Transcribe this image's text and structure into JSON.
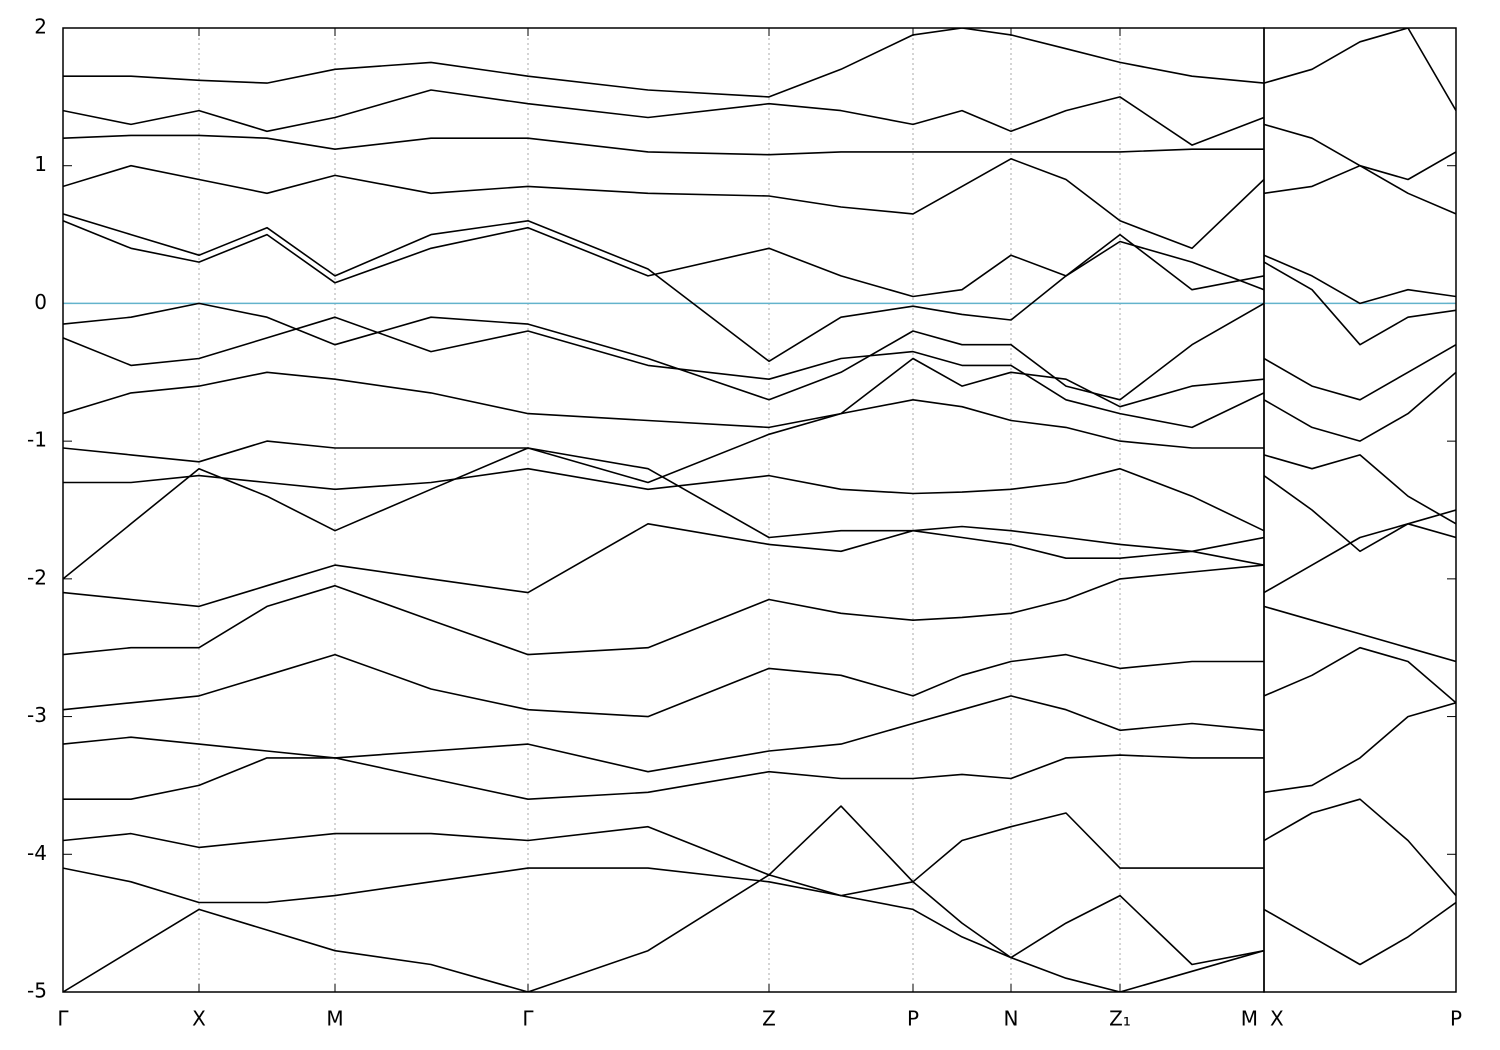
{
  "chart_data": [
    {
      "type": "line",
      "color": "#000000",
      "fermi_level": 0,
      "fermi_color": "#63b3cc",
      "xgrid": true,
      "xlim": [
        0,
        1201
      ],
      "ylim": [
        -5,
        2
      ],
      "yticks": [
        -5,
        -4,
        -3,
        -2,
        -1,
        0,
        1,
        2
      ],
      "xticks": [
        {
          "value": 0,
          "label": "Γ"
        },
        {
          "value": 136,
          "label": "X"
        },
        {
          "value": 272,
          "label": "M"
        },
        {
          "value": 465,
          "label": "Γ"
        },
        {
          "value": 706,
          "label": "Z"
        },
        {
          "value": 850,
          "label": "P"
        },
        {
          "value": 948,
          "label": "N"
        },
        {
          "value": 1057,
          "label": "Z₁"
        },
        {
          "value": 1201,
          "label": "M"
        }
      ],
      "x": [
        0,
        68,
        136,
        204,
        272,
        368,
        465,
        585,
        706,
        778,
        850,
        899,
        948,
        1003,
        1057,
        1129,
        1201
      ],
      "series": [
        {
          "values": [
            -0.15,
            -0.1,
            0.0,
            -0.1,
            -0.3,
            -0.1,
            -0.15,
            -0.4,
            -0.7,
            -0.5,
            -0.2,
            -0.3,
            -0.3,
            -0.6,
            -0.7,
            -0.3,
            0.0
          ]
        },
        {
          "values": [
            0.6,
            0.4,
            0.3,
            0.5,
            0.15,
            0.4,
            0.55,
            0.2,
            0.4,
            0.2,
            0.05,
            0.1,
            0.35,
            0.2,
            0.45,
            0.3,
            0.1
          ]
        },
        {
          "values": [
            0.65,
            0.5,
            0.35,
            0.55,
            0.2,
            0.5,
            0.6,
            0.25,
            -0.42,
            -0.1,
            -0.02,
            -0.08,
            -0.12,
            0.2,
            0.5,
            0.1,
            0.2
          ]
        },
        {
          "values": [
            0.85,
            1.0,
            0.9,
            0.8,
            0.93,
            0.8,
            0.85,
            0.8,
            0.78,
            0.7,
            0.65,
            0.85,
            1.05,
            0.9,
            0.6,
            0.4,
            0.9
          ]
        },
        {
          "values": [
            1.2,
            1.22,
            1.22,
            1.2,
            1.12,
            1.2,
            1.2,
            1.1,
            1.08,
            1.1,
            1.1,
            1.1,
            1.1,
            1.1,
            1.1,
            1.12,
            1.12
          ]
        },
        {
          "values": [
            1.4,
            1.3,
            1.4,
            1.25,
            1.35,
            1.55,
            1.45,
            1.35,
            1.45,
            1.4,
            1.3,
            1.4,
            1.25,
            1.4,
            1.5,
            1.15,
            1.35
          ]
        },
        {
          "values": [
            1.65,
            1.65,
            1.62,
            1.6,
            1.7,
            1.75,
            1.65,
            1.55,
            1.5,
            1.7,
            1.95,
            2.0,
            1.95,
            1.85,
            1.75,
            1.65,
            1.6
          ]
        },
        {
          "values": [
            -0.8,
            -0.65,
            -0.6,
            -0.5,
            -0.55,
            -0.65,
            -0.8,
            -0.85,
            -0.9,
            -0.8,
            -0.4,
            -0.6,
            -0.5,
            -0.55,
            -0.75,
            -0.6,
            -0.55
          ]
        },
        {
          "values": [
            -0.25,
            -0.45,
            -0.4,
            -0.25,
            -0.1,
            -0.35,
            -0.2,
            -0.45,
            -0.55,
            -0.4,
            -0.35,
            -0.45,
            -0.45,
            -0.7,
            -0.8,
            -0.9,
            -0.65
          ]
        },
        {
          "values": [
            -1.05,
            -1.1,
            -1.15,
            -1.0,
            -1.05,
            -1.05,
            -1.05,
            -1.3,
            -0.95,
            -0.8,
            -0.7,
            -0.75,
            -0.85,
            -0.9,
            -1.0,
            -1.05,
            -1.05
          ]
        },
        {
          "values": [
            -1.3,
            -1.3,
            -1.25,
            -1.3,
            -1.35,
            -1.3,
            -1.2,
            -1.35,
            -1.25,
            -1.35,
            -1.38,
            -1.37,
            -1.35,
            -1.3,
            -1.2,
            -1.4,
            -1.65
          ]
        },
        {
          "values": [
            -2.0,
            -1.6,
            -1.2,
            -1.4,
            -1.65,
            -1.35,
            -1.05,
            -1.2,
            -1.7,
            -1.65,
            -1.65,
            -1.62,
            -1.65,
            -1.7,
            -1.75,
            -1.8,
            -1.7
          ]
        },
        {
          "values": [
            -2.1,
            -2.15,
            -2.2,
            -2.05,
            -1.9,
            -2.0,
            -2.1,
            -1.6,
            -1.75,
            -1.8,
            -1.65,
            -1.7,
            -1.75,
            -1.85,
            -1.85,
            -1.8,
            -1.9
          ]
        },
        {
          "values": [
            -2.55,
            -2.5,
            -2.5,
            -2.2,
            -2.05,
            -2.3,
            -2.55,
            -2.5,
            -2.15,
            -2.25,
            -2.3,
            -2.28,
            -2.25,
            -2.15,
            -2.0,
            -1.95,
            -1.9
          ]
        },
        {
          "values": [
            -2.95,
            -2.9,
            -2.85,
            -2.7,
            -2.55,
            -2.8,
            -2.95,
            -3.0,
            -2.65,
            -2.7,
            -2.85,
            -2.7,
            -2.6,
            -2.55,
            -2.65,
            -2.6,
            -2.6
          ]
        },
        {
          "values": [
            -3.2,
            -3.15,
            -3.2,
            -3.25,
            -3.3,
            -3.25,
            -3.2,
            -3.4,
            -3.25,
            -3.2,
            -3.05,
            -2.95,
            -2.85,
            -2.95,
            -3.1,
            -3.05,
            -3.1
          ]
        },
        {
          "values": [
            -3.6,
            -3.6,
            -3.5,
            -3.3,
            -3.3,
            -3.45,
            -3.6,
            -3.55,
            -3.4,
            -3.45,
            -3.45,
            -3.42,
            -3.45,
            -3.3,
            -3.28,
            -3.3,
            -3.3
          ]
        },
        {
          "values": [
            -3.9,
            -3.85,
            -3.95,
            -3.9,
            -3.85,
            -3.85,
            -3.9,
            -3.8,
            -4.15,
            -3.65,
            -4.2,
            -3.9,
            -3.8,
            -3.7,
            -4.1,
            -4.1,
            -4.1
          ]
        },
        {
          "values": [
            -4.1,
            -4.2,
            -4.35,
            -4.35,
            -4.3,
            -4.2,
            -4.1,
            -4.1,
            -4.2,
            -4.3,
            -4.2,
            -4.5,
            -4.75,
            -4.5,
            -4.3,
            -4.8,
            -4.7
          ]
        },
        {
          "values": [
            -5.0,
            -4.7,
            -4.4,
            -4.55,
            -4.7,
            -4.8,
            -5.0,
            -4.7,
            -4.15,
            -4.3,
            -4.4,
            -4.6,
            -4.75,
            -4.9,
            -5.0,
            -4.85,
            -4.7
          ]
        }
      ]
    },
    {
      "type": "line",
      "color": "#000000",
      "fermi_level": 0,
      "fermi_color": "#63b3cc",
      "xgrid": true,
      "xlim": [
        0,
        192
      ],
      "ylim": [
        -5,
        2
      ],
      "xticks": [
        {
          "value": 0,
          "label": "X"
        },
        {
          "value": 192,
          "label": "P"
        }
      ],
      "x": [
        0,
        48,
        96,
        144,
        192
      ],
      "series": [
        {
          "values": [
            0.35,
            0.2,
            0.0,
            0.1,
            0.05
          ]
        },
        {
          "values": [
            0.3,
            0.1,
            -0.3,
            -0.1,
            -0.05
          ]
        },
        {
          "values": [
            0.8,
            0.85,
            1.0,
            0.9,
            1.1
          ]
        },
        {
          "values": [
            1.3,
            1.2,
            1.0,
            0.8,
            0.65
          ]
        },
        {
          "values": [
            1.6,
            1.7,
            1.9,
            2.0,
            1.4
          ]
        },
        {
          "values": [
            -0.4,
            -0.6,
            -0.7,
            -0.5,
            -0.3
          ]
        },
        {
          "values": [
            -0.7,
            -0.9,
            -1.0,
            -0.8,
            -0.5
          ]
        },
        {
          "values": [
            -1.1,
            -1.2,
            -1.1,
            -1.4,
            -1.6
          ]
        },
        {
          "values": [
            -1.25,
            -1.5,
            -1.8,
            -1.6,
            -1.7
          ]
        },
        {
          "values": [
            -2.1,
            -1.9,
            -1.7,
            -1.6,
            -1.5
          ]
        },
        {
          "values": [
            -2.2,
            -2.3,
            -2.4,
            -2.5,
            -2.6
          ]
        },
        {
          "values": [
            -2.85,
            -2.7,
            -2.5,
            -2.6,
            -2.9
          ]
        },
        {
          "values": [
            -3.55,
            -3.5,
            -3.3,
            -3.0,
            -2.9
          ]
        },
        {
          "values": [
            -3.9,
            -3.7,
            -3.6,
            -3.9,
            -4.3
          ]
        },
        {
          "values": [
            -4.4,
            -4.6,
            -4.8,
            -4.6,
            -4.35
          ]
        }
      ]
    }
  ]
}
